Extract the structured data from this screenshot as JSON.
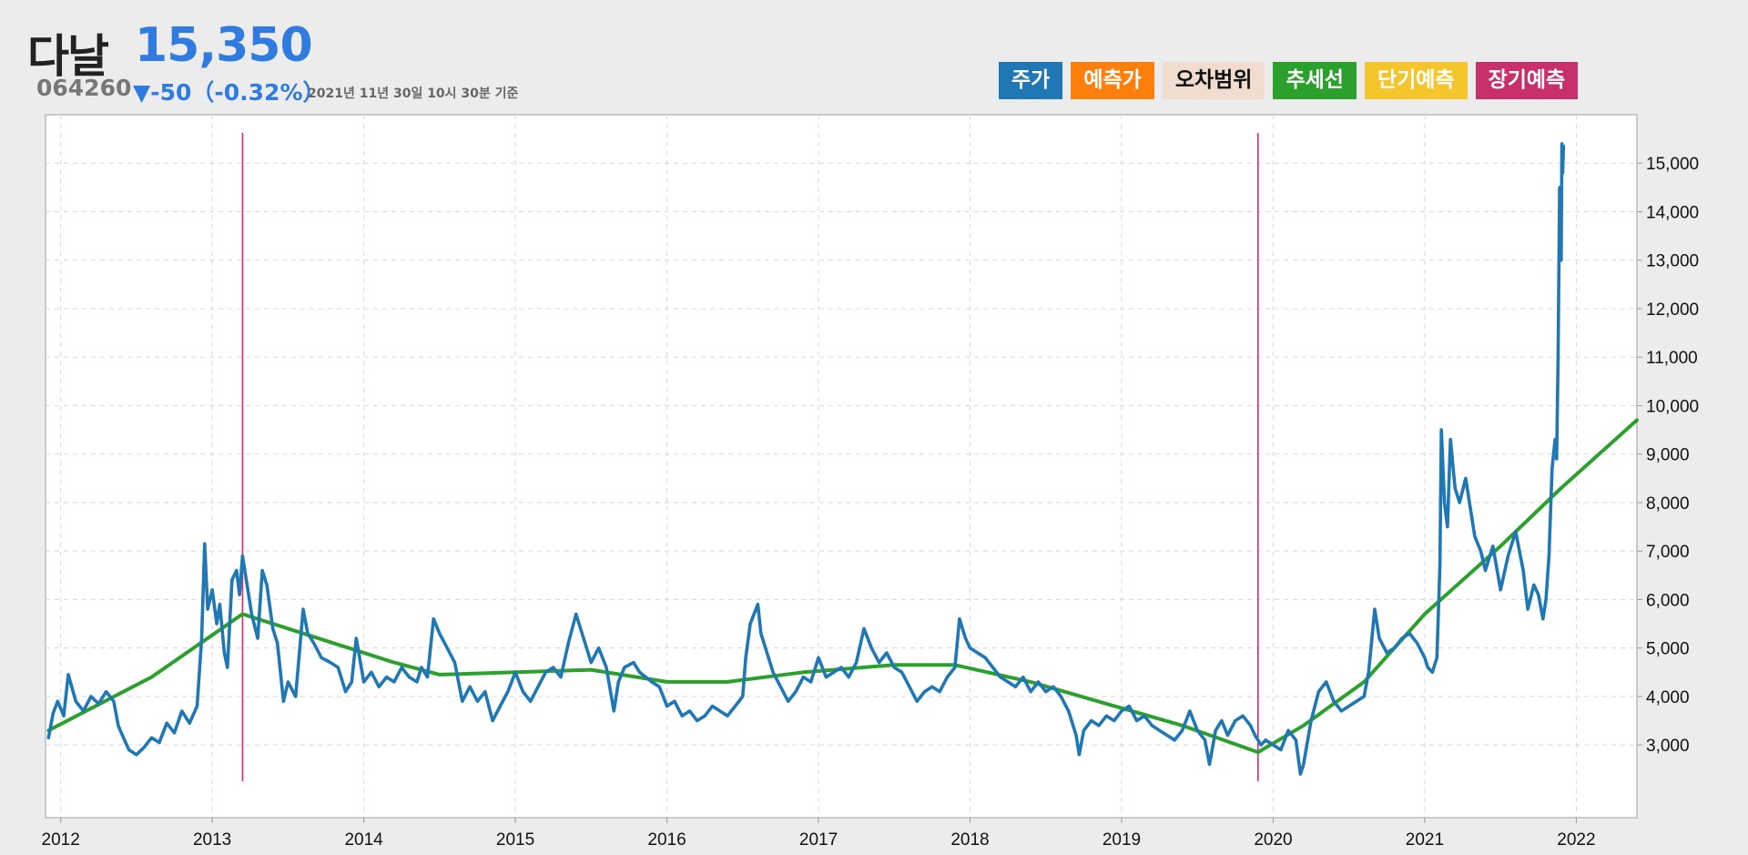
{
  "header": {
    "name": "다날",
    "price": "15,350",
    "code": "064260",
    "change": "▼-50（-0.32%）",
    "timestamp": "2021년 11년 30일 10시 30분 기준"
  },
  "legend": [
    {
      "label": "주가",
      "color": "#1f77b4",
      "light": false
    },
    {
      "label": "예측가",
      "color": "#ff7f0e",
      "light": false
    },
    {
      "label": "오차범위",
      "color": "#f0ddd0",
      "light": true
    },
    {
      "label": "추세선",
      "color": "#2ca02c",
      "light": false
    },
    {
      "label": "단기예측",
      "color": "#f5c52c",
      "light": false
    },
    {
      "label": "장기예측",
      "color": "#c7306b",
      "light": false
    }
  ],
  "chart_data": {
    "type": "line",
    "x_axis": {
      "min": 2011.9,
      "max": 2022.4,
      "ticks": [
        "2012",
        "2013",
        "2014",
        "2015",
        "2016",
        "2017",
        "2018",
        "2019",
        "2020",
        "2021",
        "2022"
      ]
    },
    "y_axis": {
      "min": 1500,
      "max": 16000,
      "position": "right",
      "ticks": [
        "3,000",
        "4,000",
        "5,000",
        "6,000",
        "7,000",
        "8,000",
        "9,000",
        "10,000",
        "11,000",
        "12,000",
        "13,000",
        "14,000",
        "15,000"
      ]
    },
    "grid": true,
    "vertical_markers": [
      2013.2,
      2019.9
    ],
    "series": [
      {
        "name": "주가",
        "color": "#1f77b4",
        "points": [
          [
            2011.92,
            3150
          ],
          [
            2011.95,
            3650
          ],
          [
            2011.98,
            3900
          ],
          [
            2012.02,
            3600
          ],
          [
            2012.05,
            4450
          ],
          [
            2012.1,
            3900
          ],
          [
            2012.15,
            3700
          ],
          [
            2012.2,
            4000
          ],
          [
            2012.25,
            3850
          ],
          [
            2012.3,
            4100
          ],
          [
            2012.35,
            3900
          ],
          [
            2012.38,
            3400
          ],
          [
            2012.4,
            3250
          ],
          [
            2012.45,
            2900
          ],
          [
            2012.5,
            2800
          ],
          [
            2012.55,
            2950
          ],
          [
            2012.6,
            3150
          ],
          [
            2012.65,
            3050
          ],
          [
            2012.7,
            3450
          ],
          [
            2012.75,
            3250
          ],
          [
            2012.8,
            3700
          ],
          [
            2012.85,
            3450
          ],
          [
            2012.9,
            3800
          ],
          [
            2012.93,
            5200
          ],
          [
            2012.95,
            7150
          ],
          [
            2012.97,
            5800
          ],
          [
            2013.0,
            6200
          ],
          [
            2013.03,
            5500
          ],
          [
            2013.05,
            5900
          ],
          [
            2013.08,
            4900
          ],
          [
            2013.1,
            4600
          ],
          [
            2013.13,
            6400
          ],
          [
            2013.16,
            6600
          ],
          [
            2013.18,
            6100
          ],
          [
            2013.2,
            6900
          ],
          [
            2013.23,
            6300
          ],
          [
            2013.26,
            5700
          ],
          [
            2013.3,
            5200
          ],
          [
            2013.33,
            6600
          ],
          [
            2013.36,
            6300
          ],
          [
            2013.4,
            5400
          ],
          [
            2013.43,
            5100
          ],
          [
            2013.47,
            3900
          ],
          [
            2013.5,
            4300
          ],
          [
            2013.55,
            4000
          ],
          [
            2013.6,
            5800
          ],
          [
            2013.63,
            5300
          ],
          [
            2013.67,
            5100
          ],
          [
            2013.72,
            4800
          ],
          [
            2013.78,
            4700
          ],
          [
            2013.83,
            4600
          ],
          [
            2013.88,
            4100
          ],
          [
            2013.92,
            4300
          ],
          [
            2013.95,
            5200
          ],
          [
            2014.0,
            4300
          ],
          [
            2014.05,
            4500
          ],
          [
            2014.1,
            4200
          ],
          [
            2014.15,
            4400
          ],
          [
            2014.2,
            4300
          ],
          [
            2014.25,
            4600
          ],
          [
            2014.3,
            4400
          ],
          [
            2014.35,
            4300
          ],
          [
            2014.38,
            4600
          ],
          [
            2014.42,
            4400
          ],
          [
            2014.46,
            5600
          ],
          [
            2014.5,
            5300
          ],
          [
            2014.55,
            5000
          ],
          [
            2014.6,
            4700
          ],
          [
            2014.65,
            3900
          ],
          [
            2014.7,
            4200
          ],
          [
            2014.75,
            3900
          ],
          [
            2014.8,
            4100
          ],
          [
            2014.85,
            3500
          ],
          [
            2014.9,
            3800
          ],
          [
            2014.95,
            4100
          ],
          [
            2015.0,
            4500
          ],
          [
            2015.05,
            4100
          ],
          [
            2015.1,
            3900
          ],
          [
            2015.15,
            4200
          ],
          [
            2015.2,
            4500
          ],
          [
            2015.25,
            4600
          ],
          [
            2015.3,
            4400
          ],
          [
            2015.35,
            5100
          ],
          [
            2015.4,
            5700
          ],
          [
            2015.45,
            5200
          ],
          [
            2015.5,
            4700
          ],
          [
            2015.55,
            5000
          ],
          [
            2015.6,
            4600
          ],
          [
            2015.65,
            3700
          ],
          [
            2015.68,
            4300
          ],
          [
            2015.72,
            4600
          ],
          [
            2015.78,
            4700
          ],
          [
            2015.82,
            4500
          ],
          [
            2015.9,
            4300
          ],
          [
            2015.95,
            4200
          ],
          [
            2016.0,
            3800
          ],
          [
            2016.05,
            3900
          ],
          [
            2016.1,
            3600
          ],
          [
            2016.15,
            3700
          ],
          [
            2016.2,
            3500
          ],
          [
            2016.25,
            3600
          ],
          [
            2016.3,
            3800
          ],
          [
            2016.35,
            3700
          ],
          [
            2016.4,
            3600
          ],
          [
            2016.45,
            3800
          ],
          [
            2016.5,
            4000
          ],
          [
            2016.52,
            4800
          ],
          [
            2016.55,
            5500
          ],
          [
            2016.6,
            5900
          ],
          [
            2016.62,
            5300
          ],
          [
            2016.65,
            5000
          ],
          [
            2016.7,
            4500
          ],
          [
            2016.75,
            4200
          ],
          [
            2016.8,
            3900
          ],
          [
            2016.85,
            4100
          ],
          [
            2016.9,
            4400
          ],
          [
            2016.95,
            4300
          ],
          [
            2017.0,
            4800
          ],
          [
            2017.05,
            4400
          ],
          [
            2017.1,
            4500
          ],
          [
            2017.15,
            4600
          ],
          [
            2017.2,
            4400
          ],
          [
            2017.25,
            4700
          ],
          [
            2017.3,
            5400
          ],
          [
            2017.35,
            5000
          ],
          [
            2017.4,
            4700
          ],
          [
            2017.45,
            4900
          ],
          [
            2017.5,
            4600
          ],
          [
            2017.55,
            4500
          ],
          [
            2017.6,
            4200
          ],
          [
            2017.65,
            3900
          ],
          [
            2017.7,
            4100
          ],
          [
            2017.75,
            4200
          ],
          [
            2017.8,
            4100
          ],
          [
            2017.85,
            4400
          ],
          [
            2017.9,
            4600
          ],
          [
            2017.93,
            5600
          ],
          [
            2017.97,
            5200
          ],
          [
            2018.0,
            5000
          ],
          [
            2018.05,
            4900
          ],
          [
            2018.1,
            4800
          ],
          [
            2018.15,
            4600
          ],
          [
            2018.2,
            4400
          ],
          [
            2018.25,
            4300
          ],
          [
            2018.3,
            4200
          ],
          [
            2018.35,
            4400
          ],
          [
            2018.4,
            4100
          ],
          [
            2018.45,
            4300
          ],
          [
            2018.5,
            4100
          ],
          [
            2018.55,
            4200
          ],
          [
            2018.6,
            4000
          ],
          [
            2018.65,
            3700
          ],
          [
            2018.7,
            3200
          ],
          [
            2018.72,
            2800
          ],
          [
            2018.75,
            3300
          ],
          [
            2018.8,
            3500
          ],
          [
            2018.85,
            3400
          ],
          [
            2018.9,
            3600
          ],
          [
            2018.95,
            3500
          ],
          [
            2019.0,
            3700
          ],
          [
            2019.05,
            3800
          ],
          [
            2019.1,
            3500
          ],
          [
            2019.15,
            3600
          ],
          [
            2019.2,
            3400
          ],
          [
            2019.25,
            3300
          ],
          [
            2019.3,
            3200
          ],
          [
            2019.35,
            3100
          ],
          [
            2019.4,
            3300
          ],
          [
            2019.45,
            3700
          ],
          [
            2019.5,
            3300
          ],
          [
            2019.55,
            3100
          ],
          [
            2019.58,
            2600
          ],
          [
            2019.62,
            3300
          ],
          [
            2019.66,
            3500
          ],
          [
            2019.7,
            3200
          ],
          [
            2019.75,
            3500
          ],
          [
            2019.8,
            3600
          ],
          [
            2019.85,
            3400
          ],
          [
            2019.88,
            3200
          ],
          [
            2019.92,
            3000
          ],
          [
            2019.95,
            3100
          ],
          [
            2020.0,
            3000
          ],
          [
            2020.05,
            2900
          ],
          [
            2020.1,
            3300
          ],
          [
            2020.15,
            3100
          ],
          [
            2020.18,
            2400
          ],
          [
            2020.2,
            2600
          ],
          [
            2020.25,
            3500
          ],
          [
            2020.3,
            4100
          ],
          [
            2020.35,
            4300
          ],
          [
            2020.4,
            3900
          ],
          [
            2020.45,
            3700
          ],
          [
            2020.5,
            3800
          ],
          [
            2020.55,
            3900
          ],
          [
            2020.6,
            4000
          ],
          [
            2020.63,
            4500
          ],
          [
            2020.67,
            5800
          ],
          [
            2020.7,
            5200
          ],
          [
            2020.75,
            4900
          ],
          [
            2020.8,
            5000
          ],
          [
            2020.85,
            5200
          ],
          [
            2020.9,
            5300
          ],
          [
            2020.95,
            5100
          ],
          [
            2021.0,
            4800
          ],
          [
            2021.02,
            4600
          ],
          [
            2021.05,
            4500
          ],
          [
            2021.08,
            4800
          ],
          [
            2021.1,
            6700
          ],
          [
            2021.11,
            9500
          ],
          [
            2021.13,
            8000
          ],
          [
            2021.15,
            7500
          ],
          [
            2021.17,
            9300
          ],
          [
            2021.2,
            8300
          ],
          [
            2021.23,
            8000
          ],
          [
            2021.27,
            8500
          ],
          [
            2021.3,
            7900
          ],
          [
            2021.33,
            7300
          ],
          [
            2021.37,
            7000
          ],
          [
            2021.4,
            6600
          ],
          [
            2021.45,
            7100
          ],
          [
            2021.5,
            6200
          ],
          [
            2021.55,
            6900
          ],
          [
            2021.6,
            7400
          ],
          [
            2021.65,
            6600
          ],
          [
            2021.68,
            5800
          ],
          [
            2021.72,
            6300
          ],
          [
            2021.75,
            6100
          ],
          [
            2021.78,
            5600
          ],
          [
            2021.8,
            6000
          ],
          [
            2021.82,
            6900
          ],
          [
            2021.84,
            8700
          ],
          [
            2021.86,
            9300
          ],
          [
            2021.87,
            8900
          ],
          [
            2021.88,
            11000
          ],
          [
            2021.89,
            14500
          ],
          [
            2021.9,
            13000
          ],
          [
            2021.905,
            15400
          ],
          [
            2021.91,
            14800
          ],
          [
            2021.915,
            15350
          ]
        ]
      },
      {
        "name": "추세선",
        "color": "#2ca02c",
        "points": [
          [
            2011.92,
            3300
          ],
          [
            2012.6,
            4400
          ],
          [
            2013.2,
            5700
          ],
          [
            2013.6,
            5300
          ],
          [
            2014.2,
            4700
          ],
          [
            2014.5,
            4450
          ],
          [
            2015.0,
            4500
          ],
          [
            2015.5,
            4550
          ],
          [
            2016.0,
            4300
          ],
          [
            2016.4,
            4300
          ],
          [
            2016.9,
            4500
          ],
          [
            2017.5,
            4650
          ],
          [
            2017.9,
            4650
          ],
          [
            2018.4,
            4300
          ],
          [
            2018.9,
            3850
          ],
          [
            2019.4,
            3400
          ],
          [
            2019.9,
            2850
          ],
          [
            2020.2,
            3400
          ],
          [
            2020.6,
            4300
          ],
          [
            2021.0,
            5700
          ],
          [
            2021.5,
            7100
          ],
          [
            2021.9,
            8300
          ],
          [
            2022.4,
            9700
          ]
        ]
      }
    ]
  }
}
